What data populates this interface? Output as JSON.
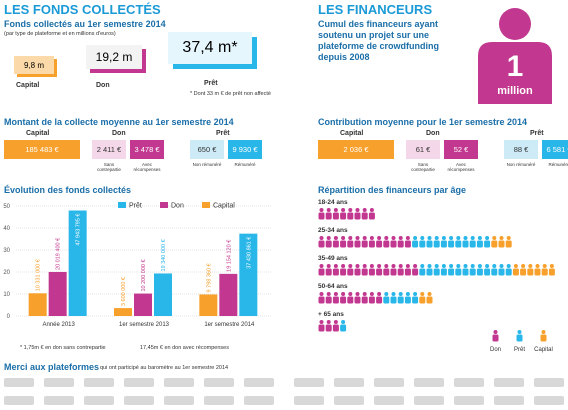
{
  "left_header": "LES FONDS COLLECTÉS",
  "funds": {
    "title": "Fonds collectés au 1er semestre 2014",
    "subtitle": "(par type de plateforme et en millions d'euros)",
    "items": [
      {
        "value": "9,8 m",
        "label": "Capital"
      },
      {
        "value": "19,2 m",
        "label": "Don"
      },
      {
        "value": "37,4 m*",
        "label": "Prêt"
      }
    ],
    "note": "* Dont 33 m € de prêt non affecté"
  },
  "average_collect": {
    "title": "Montant de la collecte moyenne au 1er semestre 2014",
    "capital": {
      "label": "Capital",
      "value": "185 483 €"
    },
    "don": {
      "label": "Don",
      "items": [
        {
          "value": "2 411 €",
          "label": "Sans contrepartie"
        },
        {
          "value": "3 478 €",
          "label": "Avec récompenses"
        }
      ]
    },
    "pret": {
      "label": "Prêt",
      "items": [
        {
          "value": "650 €",
          "label": "Non rémunéré"
        },
        {
          "value": "9 930 €",
          "label": "Rémunéré"
        }
      ]
    }
  },
  "chart_data": {
    "type": "bar",
    "title": "Évolution des fonds collectés",
    "categories": [
      "Année 2013",
      "1er semestre 2013",
      "1er semestre 2014"
    ],
    "series": [
      {
        "name": "Prêt",
        "color": "#29b6e8",
        "values": [
          47.943795,
          19.34,
          37.430861
        ],
        "value_labels": [
          "47 943 795 €",
          "19 340 000 €",
          "37 430 861 €"
        ]
      },
      {
        "name": "Don",
        "color": "#c2378f",
        "values": [
          20.0194,
          10.2,
          19.15412
        ],
        "value_labels": [
          "20 019 400 €",
          "10 200 000 €",
          "19 154 120 €"
        ]
      },
      {
        "name": "Capital",
        "color": "#f7a02c",
        "values": [
          10.331,
          3.6,
          9.79836
        ],
        "value_labels": [
          "10 331 000 €",
          "3 600 000 €",
          "9 798 360 €"
        ]
      }
    ],
    "ylim": [
      0,
      50
    ],
    "yticks": [
      0,
      10,
      20,
      30,
      40,
      50
    ],
    "grid": true,
    "notes": [
      "* 1,75m € en don sans contrepartie",
      "17,45m € en don avec récompenses"
    ]
  },
  "right_header": "LES FINANCEURS",
  "financeurs": {
    "text": "Cumul des financeurs ayant soutenu un projet sur une plateforme de crowdfunding depuis 2008",
    "big": "1",
    "unit": "million"
  },
  "average_contribution": {
    "title": "Contribution moyenne pour le 1er semestre 2014",
    "capital": {
      "label": "Capital",
      "value": "2 036 €"
    },
    "don": {
      "label": "Don",
      "items": [
        {
          "value": "61 €",
          "label": "Sans contrepartie"
        },
        {
          "value": "52 €",
          "label": "Avec récompenses"
        }
      ]
    },
    "pret": {
      "label": "Prêt",
      "items": [
        {
          "value": "88 €",
          "label": "Non rémunéré"
        },
        {
          "value": "6 581 €",
          "label": "Rémunéré"
        }
      ]
    }
  },
  "age": {
    "title": "Répartition des financeurs par âge",
    "legend": [
      "Don",
      "Prêt",
      "Capital"
    ],
    "colors": [
      "#c2378f",
      "#29b6e8",
      "#f7a02c"
    ],
    "rows": [
      {
        "label": "18-24 ans",
        "counts": [
          8,
          0,
          0
        ]
      },
      {
        "label": "25-34 ans",
        "counts": [
          13,
          11,
          3
        ]
      },
      {
        "label": "35-49 ans",
        "counts": [
          14,
          13,
          6
        ]
      },
      {
        "label": "50-64 ans",
        "counts": [
          9,
          5,
          2
        ]
      },
      {
        "label": "+ 65 ans",
        "counts": [
          3,
          1,
          0
        ]
      }
    ]
  },
  "footer": {
    "title": "Merci aux plateformes",
    "subtitle": "qui ont participé au baromètre au 1er semestre 2014"
  }
}
